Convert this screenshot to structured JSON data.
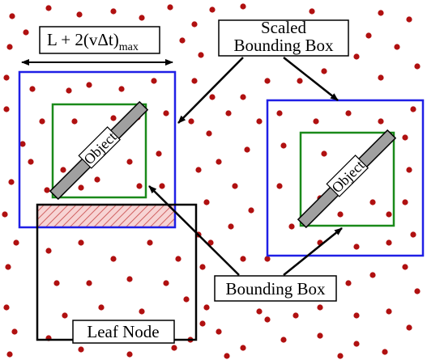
{
  "labels": {
    "dimension_formula": "L + 2(vΔt)",
    "dimension_subscript": "max",
    "scaled_bounding_box_line1": "Scaled",
    "scaled_bounding_box_line2": "Bounding Box",
    "bounding_box": "Bounding Box",
    "leaf_node": "Leaf Node",
    "object_left": "Object",
    "object_right": "Object"
  },
  "colors": {
    "scaled_bounding_box": "#1f1fe6",
    "bounding_box": "#1a8a1a",
    "leaf_node": "#000000",
    "object_fill": "#a0a0a0",
    "particle": "#b01010",
    "overlap_hatch": "#d07070"
  }
}
